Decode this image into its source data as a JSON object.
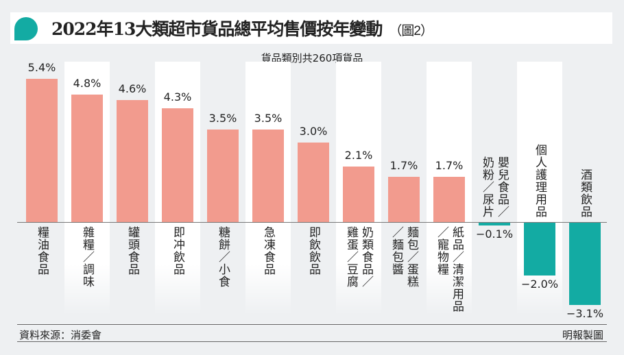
{
  "chart_data": {
    "type": "bar",
    "title": "2022年13大類超市貨品總平均售價按年變動",
    "figure_label": "（圖2）",
    "subtitle": "貨品類別共260項貨品",
    "categories": [
      "糧油食品",
      "雜糧／調味",
      "罐頭食品",
      "即冲飲品",
      "糖餅／小食",
      "急凍食品",
      "即飲飲品",
      "奶類食品／\n雞蛋／豆腐",
      "麵包／蛋糕\n／麵包醬",
      "紙品／清潔用品\n／寵物糧",
      "嬰兒食品／\n奶粉／尿片",
      "個人護理用品",
      "酒類飲品"
    ],
    "values": [
      5.4,
      4.8,
      4.6,
      4.3,
      3.5,
      3.5,
      3.0,
      2.1,
      1.7,
      1.7,
      -0.1,
      -2.0,
      -3.1
    ],
    "value_labels": [
      "5.4%",
      "4.8%",
      "4.6%",
      "4.3%",
      "3.5%",
      "3.5%",
      "3.0%",
      "2.1%",
      "1.7%",
      "1.7%",
      "−0.1%",
      "−2.0%",
      "−3.1%"
    ],
    "ylabel": "%",
    "ylim": [
      -3.1,
      5.4
    ],
    "colors": {
      "positive": "#f29b8e",
      "negative": "#13aba3"
    }
  },
  "footer": {
    "source": "資料來源：消委會",
    "credit": "明報製圖"
  }
}
